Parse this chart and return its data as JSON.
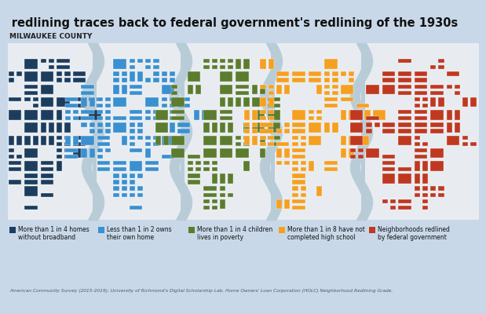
{
  "title": "Digital redlining traces back to federal government's redlining of the 1930s",
  "subtitle": "MILWAUKEE COUNTY",
  "background_color": "#c8d8e8",
  "panel_bg": "#e8ecf0",
  "wavy_bg": "#b8ccd8",
  "title_color": "#111111",
  "subtitle_color": "#222222",
  "maps": [
    {
      "color": "#1c3d5e",
      "label": "More than 1 in 4 homes\nwithout broadband",
      "label_color": "#1c3d5e"
    },
    {
      "color": "#3a90d0",
      "label": "Less than 1 in 2 owns\ntheir own home",
      "label_color": "#3a90d0"
    },
    {
      "color": "#5c7c2e",
      "label": "More than 1 in 4 children\nlives in poverty",
      "label_color": "#5c7c2e"
    },
    {
      "color": "#f5a020",
      "label": "More than 1 in 8 have not\ncompleted high school",
      "label_color": "#f5a020"
    },
    {
      "color": "#c03820",
      "label": "Neighborhoods redlined\nby federal government",
      "label_color": "#c03820"
    }
  ],
  "source_text": "American Community Survey (2015-2019); University of Richmond's Digital Scholarship Lab. Home Owners' Loan Corporation (HOLC) Neighborhood Redlining Grade.",
  "title_fontsize": 10.5,
  "subtitle_fontsize": 6.5,
  "label_fontsize": 5.5,
  "source_fontsize": 4.2
}
